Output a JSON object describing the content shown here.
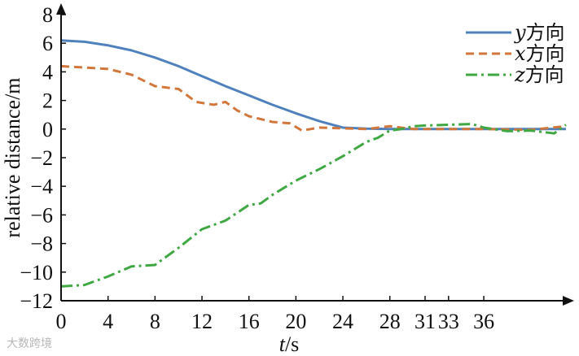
{
  "watermark": "大数跨境",
  "chart_data": {
    "type": "line",
    "xlabel": "t/s",
    "ylabel": "relative distance/m",
    "xlim": [
      0,
      43
    ],
    "ylim": [
      -12,
      8
    ],
    "x_ticks": [
      0,
      4,
      8,
      12,
      16,
      20,
      24,
      28,
      31,
      33,
      36
    ],
    "y_ticks": [
      8,
      6,
      4,
      2,
      0,
      -2,
      -4,
      -6,
      -8,
      -10,
      -12
    ],
    "legend_position": "top-right",
    "grid": false,
    "series": [
      {
        "name": "y方向",
        "color": "#4f81bd",
        "style": "solid",
        "points": [
          [
            0,
            6.2
          ],
          [
            2,
            6.1
          ],
          [
            4,
            5.85
          ],
          [
            6,
            5.5
          ],
          [
            8,
            5.0
          ],
          [
            10,
            4.4
          ],
          [
            12,
            3.7
          ],
          [
            14,
            3.0
          ],
          [
            16,
            2.35
          ],
          [
            18,
            1.7
          ],
          [
            20,
            1.1
          ],
          [
            22,
            0.55
          ],
          [
            24,
            0.1
          ],
          [
            26,
            0.03
          ],
          [
            28,
            0.0
          ],
          [
            30,
            0.0
          ],
          [
            33,
            0.0
          ],
          [
            36,
            0.0
          ],
          [
            40,
            0.0
          ],
          [
            43,
            0.0
          ]
        ]
      },
      {
        "name": "x方向",
        "color": "#d2773c",
        "style": "dashed",
        "points": [
          [
            0,
            4.4
          ],
          [
            2,
            4.3
          ],
          [
            4,
            4.2
          ],
          [
            6,
            3.8
          ],
          [
            8,
            3.0
          ],
          [
            10,
            2.8
          ],
          [
            11.5,
            1.9
          ],
          [
            13,
            1.7
          ],
          [
            14,
            1.9
          ],
          [
            15,
            1.3
          ],
          [
            16,
            0.9
          ],
          [
            18,
            0.5
          ],
          [
            19.5,
            0.4
          ],
          [
            20.5,
            -0.1
          ],
          [
            22,
            0.1
          ],
          [
            24,
            0.05
          ],
          [
            26,
            0.0
          ],
          [
            28,
            0.2
          ],
          [
            30,
            0.0
          ],
          [
            33,
            0.0
          ],
          [
            36,
            0.0
          ],
          [
            40,
            -0.05
          ],
          [
            43,
            0.2
          ]
        ]
      },
      {
        "name": "z方向",
        "color": "#3fa843",
        "style": "dashdot",
        "points": [
          [
            0,
            -11
          ],
          [
            2,
            -10.9
          ],
          [
            4,
            -10.3
          ],
          [
            6,
            -9.6
          ],
          [
            8,
            -9.5
          ],
          [
            10,
            -8.3
          ],
          [
            12,
            -7.0
          ],
          [
            14,
            -6.4
          ],
          [
            16,
            -5.3
          ],
          [
            17,
            -5.2
          ],
          [
            18,
            -4.6
          ],
          [
            20,
            -3.6
          ],
          [
            22,
            -2.8
          ],
          [
            24,
            -1.9
          ],
          [
            26,
            -0.9
          ],
          [
            27,
            -0.6
          ],
          [
            28,
            -0.1
          ],
          [
            29,
            0.0
          ],
          [
            30,
            0.2
          ],
          [
            31,
            0.25
          ],
          [
            33,
            0.3
          ],
          [
            35,
            0.35
          ],
          [
            36,
            0.1
          ],
          [
            38,
            -0.15
          ],
          [
            40,
            -0.1
          ],
          [
            42,
            -0.3
          ],
          [
            43,
            0.3
          ]
        ]
      }
    ]
  }
}
